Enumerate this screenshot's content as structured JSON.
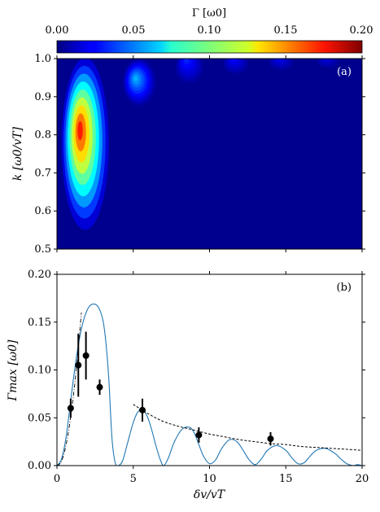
{
  "chart_data": [
    {
      "type": "heatmap",
      "panel_label": "(a)",
      "ylabel": "k [ω0/vT]",
      "colorbar": {
        "label": "Γ [ω0]",
        "range": [
          0.0,
          0.2
        ],
        "ticks": [
          "0.00",
          "0.05",
          "0.10",
          "0.15",
          "0.20"
        ],
        "colormap": "jet"
      },
      "xlim": [
        0,
        20
      ],
      "ylim": [
        0.5,
        1.0
      ],
      "yticks": [
        "0.5",
        "0.6",
        "0.7",
        "0.8",
        "0.9",
        "1.0"
      ],
      "background_color": "#00008f",
      "regions": [
        {
          "x_range": [
            0.3,
            3.4
          ],
          "k_min": 0.57,
          "peak_gamma": 0.17,
          "peak_k": 0.77
        },
        {
          "x_range": [
            4.3,
            6.5
          ],
          "k_min": 0.88,
          "peak_gamma": 0.06,
          "peak_k": 0.98
        },
        {
          "x_range": [
            7.7,
            9.7
          ],
          "k_min": 0.93,
          "peak_gamma": 0.033,
          "peak_k": 1.0
        },
        {
          "x_range": [
            10.8,
            12.7
          ],
          "k_min": 0.955,
          "peak_gamma": 0.026,
          "peak_k": 1.0
        },
        {
          "x_range": [
            13.8,
            15.7
          ],
          "k_min": 0.965,
          "peak_gamma": 0.022,
          "peak_k": 1.0
        },
        {
          "x_range": [
            16.9,
            18.7
          ],
          "k_min": 0.97,
          "peak_gamma": 0.018,
          "peak_k": 1.0
        }
      ]
    },
    {
      "type": "line",
      "panel_label": "(b)",
      "xlabel": "δv/vT",
      "ylabel": "Γmax [ω0]",
      "xlim": [
        0,
        20
      ],
      "ylim": [
        0,
        0.2
      ],
      "xticks": [
        "0",
        "5",
        "10",
        "15",
        "20"
      ],
      "yticks": [
        "0.00",
        "0.05",
        "0.10",
        "0.15",
        "0.20"
      ],
      "line_color": "#1f77b4",
      "series": [
        {
          "style": "solid",
          "x": [
            0,
            0.3,
            0.6,
            0.9,
            1.2,
            1.5,
            1.8,
            2.1,
            2.4,
            2.7,
            3.0,
            3.2,
            3.4,
            3.6,
            3.8,
            4.0,
            4.3,
            4.6,
            5.0,
            5.3,
            5.6,
            5.9,
            6.2,
            6.5,
            6.8,
            7.0,
            7.3,
            7.7,
            8.2,
            8.7,
            9.0,
            9.3,
            9.6,
            10.0,
            10.4,
            10.8,
            11.3,
            11.8,
            12.2,
            12.6,
            13.0,
            13.4,
            13.8,
            14.4,
            15.0,
            15.4,
            15.8,
            16.2,
            16.6,
            17.0,
            17.6,
            18.2,
            18.6,
            19.0,
            19.4,
            19.7,
            20.0
          ],
          "y": [
            0,
            0.007,
            0.03,
            0.068,
            0.105,
            0.135,
            0.155,
            0.166,
            0.169,
            0.166,
            0.153,
            0.13,
            0.09,
            0.03,
            0.004,
            0.0,
            0.005,
            0.022,
            0.045,
            0.056,
            0.058,
            0.052,
            0.038,
            0.02,
            0.005,
            0.0,
            0.008,
            0.025,
            0.038,
            0.04,
            0.034,
            0.022,
            0.01,
            0.002,
            0.006,
            0.018,
            0.027,
            0.025,
            0.016,
            0.006,
            0.001,
            0.007,
            0.016,
            0.021,
            0.016,
            0.008,
            0.002,
            0.003,
            0.01,
            0.016,
            0.018,
            0.013,
            0.007,
            0.002,
            0.0,
            0.001,
            0.0
          ]
        },
        {
          "style": "dashed",
          "x": [
            5.0,
            6.0,
            7.0,
            8.0,
            9.0,
            10.0,
            11.0,
            12.0,
            13.0,
            14.0,
            15.0,
            16.0,
            17.0,
            18.0,
            19.0,
            20.0
          ],
          "y": [
            0.064,
            0.054,
            0.046,
            0.041,
            0.037,
            0.033,
            0.03,
            0.027,
            0.025,
            0.023,
            0.022,
            0.02,
            0.019,
            0.018,
            0.017,
            0.016
          ]
        },
        {
          "style": "dashdot",
          "x": [
            0,
            0.2,
            0.4,
            0.6,
            0.8,
            1.0,
            1.2,
            1.4,
            1.6
          ],
          "y": [
            0,
            0.002,
            0.009,
            0.022,
            0.04,
            0.063,
            0.09,
            0.123,
            0.16
          ]
        },
        {
          "style": "points",
          "x": [
            0.9,
            1.4,
            1.9,
            2.8,
            5.6,
            9.3,
            14.0
          ],
          "y": [
            0.06,
            0.105,
            0.115,
            0.082,
            0.058,
            0.032,
            0.028
          ],
          "err": [
            0.01,
            0.033,
            0.025,
            0.008,
            0.012,
            0.008,
            0.007
          ]
        }
      ]
    }
  ]
}
